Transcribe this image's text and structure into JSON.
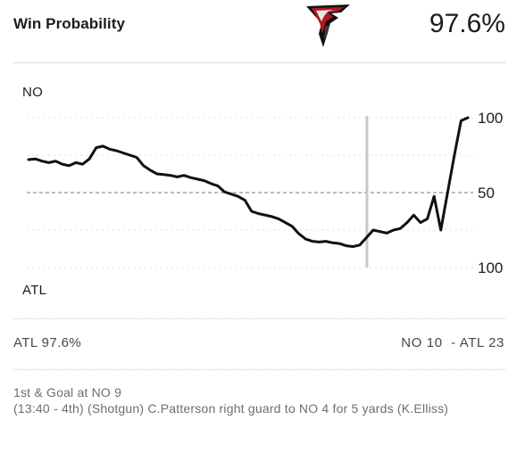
{
  "header": {
    "title": "Win Probability",
    "probability": "97.6%",
    "logo_icon": "atlanta-falcons-logo-icon"
  },
  "chart": {
    "team_top": "NO",
    "team_bottom": "ATL",
    "tick_labels": [
      "100",
      "50",
      "100"
    ],
    "line_color": "#111111",
    "marker_color": "#c8c8c8"
  },
  "chart_data": {
    "type": "line",
    "title": "Win Probability",
    "xlabel": "",
    "ylabel": "",
    "ylim": [
      -100,
      100
    ],
    "y_ticks": [
      "100",
      "50",
      "100"
    ],
    "series": [
      {
        "values": [
          44,
          45,
          42,
          40,
          42,
          38,
          36,
          40,
          38,
          45,
          60,
          62,
          58,
          56,
          53,
          50,
          47,
          36,
          30,
          25,
          24,
          23,
          21,
          23,
          20,
          18,
          16,
          12,
          9,
          1,
          -2,
          -5,
          -10,
          -25,
          -28,
          -30,
          -32,
          -35,
          -40,
          -45,
          -55,
          -62,
          -65,
          -66,
          -65,
          -67,
          -68,
          -71,
          -72,
          -70,
          -60,
          -50,
          -52,
          -54,
          -50,
          -48,
          -40,
          -30,
          -40,
          -35,
          -5,
          -50,
          0,
          50,
          96,
          100
        ]
      }
    ]
  },
  "footer": {
    "leader": "ATL 97.6%",
    "score": "NO 10  - ATL 23"
  },
  "play": {
    "situation": "1st & Goal at NO 9",
    "description": "(13:40 - 4th) (Shotgun) C.Patterson right guard to NO 4 for 5 yards (K.Elliss)"
  }
}
